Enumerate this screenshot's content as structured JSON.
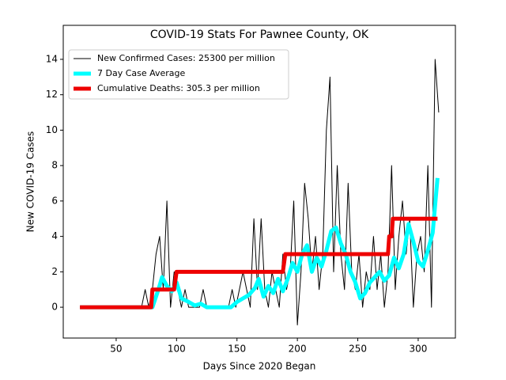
{
  "chart_data": {
    "type": "line",
    "title": "COVID-19 Stats For Pawnee County, OK",
    "xlabel": "Days Since 2020 Began",
    "ylabel": "New COVID-19 Cases",
    "xlim": [
      6.2,
      330.8
    ],
    "ylim": [
      -1.74,
      15.92
    ],
    "xticks": [
      50,
      100,
      150,
      200,
      250,
      300
    ],
    "yticks": [
      0,
      2,
      4,
      6,
      8,
      10,
      12,
      14
    ],
    "legend": "upper left",
    "series": [
      {
        "name": "New Confirmed Cases: 25300 per million",
        "color": "#000000",
        "width": 1,
        "x": [
          20,
          23,
          26,
          29,
          32,
          35,
          38,
          41,
          44,
          47,
          50,
          53,
          56,
          59,
          62,
          65,
          68,
          71,
          74,
          77,
          80,
          83,
          86,
          89,
          92,
          95,
          98,
          101,
          104,
          107,
          110,
          113,
          116,
          119,
          122,
          125,
          128,
          131,
          134,
          137,
          140,
          143,
          146,
          149,
          152,
          155,
          158,
          161,
          164,
          167,
          170,
          173,
          176,
          179,
          182,
          185,
          188,
          191,
          194,
          197,
          200,
          203,
          206,
          209,
          212,
          215,
          218,
          221,
          224,
          227,
          230,
          233,
          236,
          239,
          242,
          245,
          248,
          251,
          254,
          257,
          260,
          263,
          266,
          269,
          272,
          275,
          278,
          281,
          284,
          287,
          290,
          293,
          296,
          299,
          302,
          305,
          308,
          311,
          314,
          317
        ],
        "values": [
          0,
          0,
          0,
          0,
          0,
          0,
          0,
          0,
          0,
          0,
          0,
          0,
          0,
          0,
          0,
          0,
          0,
          0,
          1,
          0,
          1,
          3,
          4,
          1,
          6,
          0,
          2,
          1,
          0,
          1,
          0,
          0,
          0,
          0,
          1,
          0,
          0,
          0,
          0,
          0,
          0,
          0,
          1,
          0,
          1,
          2,
          1,
          0,
          5,
          1,
          5,
          1,
          0,
          2,
          1,
          0,
          3,
          1,
          2,
          6,
          -1,
          2,
          7,
          5,
          2,
          4,
          1,
          3,
          10,
          13,
          2,
          8,
          3,
          1,
          7,
          2,
          1,
          3,
          0,
          2,
          1,
          4,
          1,
          3,
          0,
          2,
          8,
          1,
          4,
          6,
          3,
          5,
          0,
          3,
          4,
          2,
          8,
          0,
          14,
          11
        ]
      },
      {
        "name": "7 Day Case Average",
        "color": "#00ffff",
        "width": 5,
        "x": [
          20,
          80,
          85,
          88,
          92,
          96,
          100,
          104,
          110,
          115,
          120,
          125,
          130,
          145,
          150,
          155,
          160,
          165,
          168,
          172,
          176,
          180,
          184,
          188,
          192,
          196,
          200,
          204,
          208,
          212,
          216,
          220,
          224,
          228,
          232,
          236,
          240,
          244,
          248,
          252,
          256,
          260,
          264,
          268,
          272,
          276,
          280,
          284,
          288,
          292,
          296,
          300,
          304,
          308,
          312,
          316
        ],
        "values": [
          0,
          0,
          1,
          1.7,
          1.2,
          0.9,
          1.4,
          0.5,
          0.3,
          0.1,
          0.2,
          0,
          0,
          0,
          0.3,
          0.5,
          0.7,
          1.1,
          1.6,
          0.6,
          1.2,
          0.8,
          1.6,
          0.9,
          1.6,
          2.5,
          2,
          3,
          3.5,
          2,
          2.8,
          2.3,
          3.2,
          4.3,
          4.5,
          3.6,
          3,
          2,
          1.4,
          0.5,
          0.8,
          1.4,
          1.7,
          2,
          1.5,
          1.8,
          2.8,
          2.2,
          3,
          4.7,
          3.7,
          2.6,
          2.3,
          3.2,
          4.2,
          7.3
        ]
      },
      {
        "name": "Cumulative Deaths: 305.3 per million",
        "color": "#ee0000",
        "width": 5,
        "x": [
          20,
          79,
          80,
          98,
          100,
          188,
          190,
          275,
          276,
          278,
          279,
          316
        ],
        "values": [
          0,
          0,
          1,
          1,
          2,
          2,
          3,
          3,
          4,
          4,
          5,
          5
        ]
      }
    ]
  }
}
